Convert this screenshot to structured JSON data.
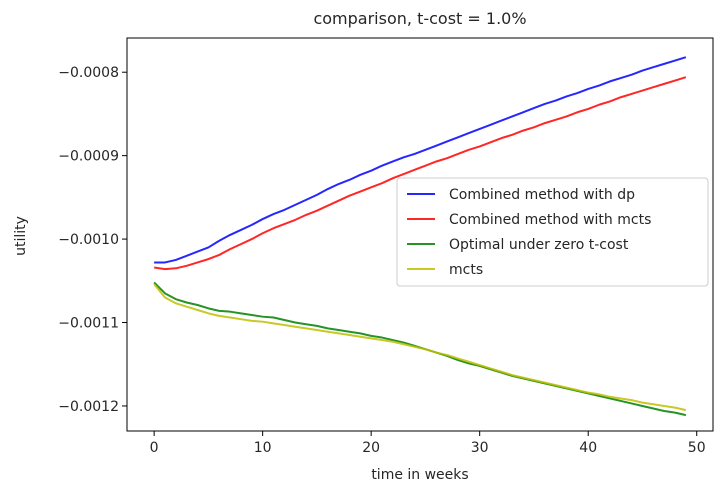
{
  "chart_data": {
    "type": "line",
    "title": "comparison, t-cost = 1.0%",
    "xlabel": "time in weeks",
    "ylabel": "utility",
    "xlim": [
      -2.5,
      51.5
    ],
    "ylim": [
      -0.00123,
      -0.000759
    ],
    "xticks": [
      0,
      10,
      20,
      30,
      40,
      50
    ],
    "xtick_labels": [
      "0",
      "10",
      "20",
      "30",
      "40",
      "50"
    ],
    "yticks": [
      -0.0012,
      -0.0011,
      -0.001,
      -0.0009,
      -0.0008
    ],
    "ytick_labels": [
      "−0.0012",
      "−0.0011",
      "−0.0010",
      "−0.0009",
      "−0.0008"
    ],
    "grid": false,
    "legend_position": "center-right",
    "x": [
      0,
      1,
      2,
      3,
      4,
      5,
      6,
      7,
      8,
      9,
      10,
      11,
      12,
      13,
      14,
      15,
      16,
      17,
      18,
      19,
      20,
      21,
      22,
      23,
      24,
      25,
      26,
      27,
      28,
      29,
      30,
      31,
      32,
      33,
      34,
      35,
      36,
      37,
      38,
      39,
      40,
      41,
      42,
      43,
      44,
      45,
      46,
      47,
      48,
      49
    ],
    "series": [
      {
        "name": "Combined method with dp",
        "color": "#0000ff",
        "values": [
          -0.001028,
          -0.001028,
          -0.001025,
          -0.00102,
          -0.001015,
          -0.00101,
          -0.001002,
          -0.000995,
          -0.000989,
          -0.000983,
          -0.000976,
          -0.00097,
          -0.000965,
          -0.000959,
          -0.000953,
          -0.000947,
          -0.00094,
          -0.000934,
          -0.000929,
          -0.000923,
          -0.000918,
          -0.000912,
          -0.000907,
          -0.000902,
          -0.000898,
          -0.000893,
          -0.000888,
          -0.000883,
          -0.000878,
          -0.000873,
          -0.000868,
          -0.000863,
          -0.000858,
          -0.000853,
          -0.000848,
          -0.000843,
          -0.000838,
          -0.000834,
          -0.000829,
          -0.000825,
          -0.00082,
          -0.000816,
          -0.000811,
          -0.000807,
          -0.000803,
          -0.000798,
          -0.000794,
          -0.00079,
          -0.000786,
          -0.000782
        ]
      },
      {
        "name": "Combined method with mcts",
        "color": "#ff0000",
        "values": [
          -0.001034,
          -0.001036,
          -0.001035,
          -0.001032,
          -0.001028,
          -0.001024,
          -0.001019,
          -0.001012,
          -0.001006,
          -0.001,
          -0.000993,
          -0.000987,
          -0.000982,
          -0.000977,
          -0.000971,
          -0.000966,
          -0.00096,
          -0.000954,
          -0.000948,
          -0.000943,
          -0.000938,
          -0.000933,
          -0.000927,
          -0.000922,
          -0.000917,
          -0.000912,
          -0.000907,
          -0.000903,
          -0.000898,
          -0.000893,
          -0.000889,
          -0.000884,
          -0.000879,
          -0.000875,
          -0.00087,
          -0.000866,
          -0.000861,
          -0.000857,
          -0.000853,
          -0.000848,
          -0.000844,
          -0.000839,
          -0.000835,
          -0.00083,
          -0.000826,
          -0.000822,
          -0.000818,
          -0.000814,
          -0.00081,
          -0.000806
        ]
      },
      {
        "name": "Optimal under zero t-cost",
        "color": "#008000",
        "values": [
          -0.001052,
          -0.001065,
          -0.001072,
          -0.001076,
          -0.001079,
          -0.001083,
          -0.001086,
          -0.001087,
          -0.001089,
          -0.001091,
          -0.001093,
          -0.001094,
          -0.001097,
          -0.0011,
          -0.001102,
          -0.001104,
          -0.001107,
          -0.001109,
          -0.001111,
          -0.001113,
          -0.001116,
          -0.001118,
          -0.001121,
          -0.001124,
          -0.001128,
          -0.001132,
          -0.001136,
          -0.00114,
          -0.001145,
          -0.001149,
          -0.001152,
          -0.001156,
          -0.00116,
          -0.001164,
          -0.001167,
          -0.00117,
          -0.001173,
          -0.001176,
          -0.001179,
          -0.001182,
          -0.001185,
          -0.001188,
          -0.001191,
          -0.001194,
          -0.001197,
          -0.0012,
          -0.001203,
          -0.001206,
          -0.001208,
          -0.001211
        ]
      },
      {
        "name": "mcts",
        "color": "#bfbf00",
        "values": [
          -0.001054,
          -0.00107,
          -0.001077,
          -0.001081,
          -0.001085,
          -0.001089,
          -0.001092,
          -0.001094,
          -0.001096,
          -0.001098,
          -0.001099,
          -0.001101,
          -0.001103,
          -0.001105,
          -0.001107,
          -0.001109,
          -0.001111,
          -0.001113,
          -0.001115,
          -0.001117,
          -0.001119,
          -0.001121,
          -0.001123,
          -0.001126,
          -0.001129,
          -0.001132,
          -0.001136,
          -0.001139,
          -0.001143,
          -0.001147,
          -0.001151,
          -0.001155,
          -0.001159,
          -0.001163,
          -0.001166,
          -0.001169,
          -0.001172,
          -0.001175,
          -0.001178,
          -0.001181,
          -0.001184,
          -0.001186,
          -0.001189,
          -0.001191,
          -0.001193,
          -0.001196,
          -0.001198,
          -0.0012,
          -0.001202,
          -0.001205
        ]
      }
    ]
  }
}
